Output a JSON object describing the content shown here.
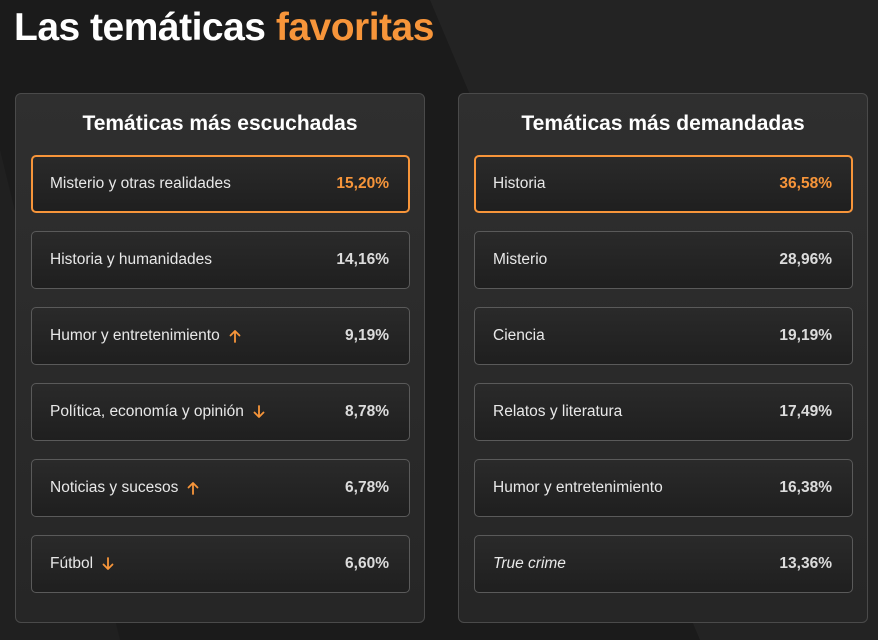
{
  "header": {
    "title_main": "Las temáticas",
    "title_accent": "favoritas"
  },
  "colors": {
    "accent": "#f7953a",
    "background": "#1b1b1b"
  },
  "panels": [
    {
      "title": "Temáticas más escuchadas",
      "items": [
        {
          "label": "Misterio y otras realidades",
          "value": "15,20%",
          "trend": null,
          "highlighted": true
        },
        {
          "label": "Historia y humanidades",
          "value": "14,16%",
          "trend": null
        },
        {
          "label": "Humor y entretenimiento",
          "value": "9,19%",
          "trend": "up"
        },
        {
          "label": "Política, economía y opinión",
          "value": "8,78%",
          "trend": "down"
        },
        {
          "label": "Noticias y sucesos",
          "value": "6,78%",
          "trend": "up"
        },
        {
          "label": "Fútbol",
          "value": "6,60%",
          "trend": "down"
        }
      ]
    },
    {
      "title": "Temáticas más demandadas",
      "items": [
        {
          "label": "Historia",
          "value": "36,58%",
          "trend": null,
          "highlighted": true
        },
        {
          "label": "Misterio",
          "value": "28,96%",
          "trend": null
        },
        {
          "label": "Ciencia",
          "value": "19,19%",
          "trend": null
        },
        {
          "label": "Relatos y literatura",
          "value": "17,49%",
          "trend": null
        },
        {
          "label": "Humor y entretenimiento",
          "value": "16,38%",
          "trend": null
        },
        {
          "label": "True crime",
          "value": "13,36%",
          "trend": null,
          "italic": true
        }
      ]
    }
  ]
}
